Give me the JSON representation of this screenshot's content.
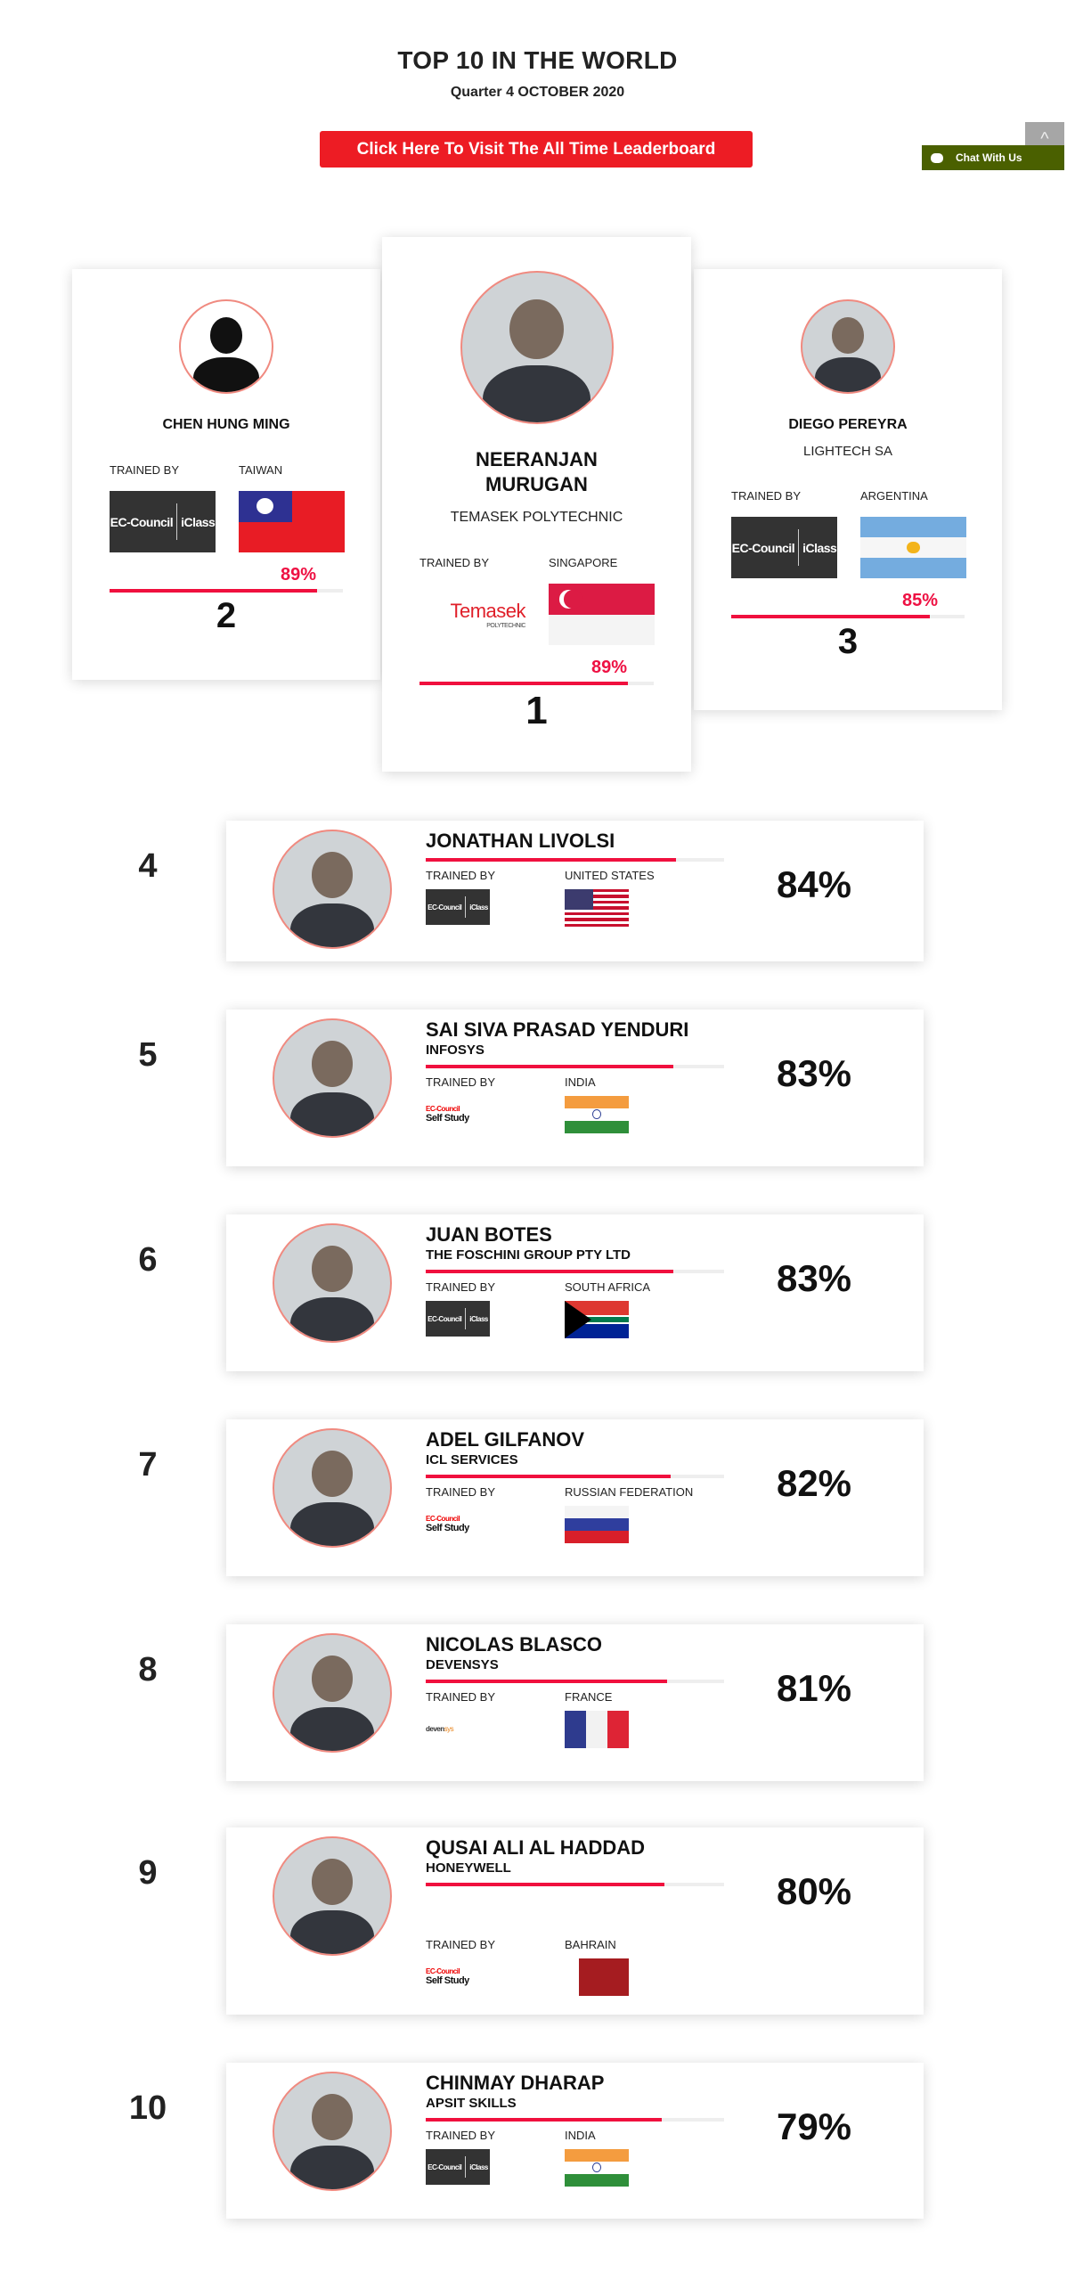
{
  "header": {
    "title": "TOP 10 IN THE WORLD",
    "subtitle": "Quarter 4 OCTOBER 2020",
    "cta_label": "Click Here To Visit The All Time Leaderboard"
  },
  "widgets": {
    "scroll_top_icon": "chevron-up-icon",
    "scroll_top_glyph": "^",
    "chat_label": "Chat With Us",
    "chat_icon": "speech-bubble-icon"
  },
  "trained_by_label": "TRAINED BY",
  "accent_color": "#f0103e",
  "podium": [
    {
      "rank": "2",
      "name": "CHEN HUNG MING",
      "org": "",
      "country": "TAIWAN",
      "flag": "TW",
      "trainer": "ec-council-iclass",
      "trainer_text": [
        "EC-Council",
        "iClass"
      ],
      "score": 89,
      "score_label": "89%",
      "avatar": "silhouette"
    },
    {
      "rank": "1",
      "name": "NEERANJAN MURUGAN",
      "org": "TEMASEK POLYTECHNIC",
      "country": "SINGAPORE",
      "flag": "SG",
      "trainer": "temasek",
      "trainer_text": [
        "Temasek",
        "POLYTECHNIC"
      ],
      "score": 89,
      "score_label": "89%",
      "avatar": "photo"
    },
    {
      "rank": "3",
      "name": "DIEGO PEREYRA",
      "org": "LIGHTECH SA",
      "country": "ARGENTINA",
      "flag": "AR",
      "trainer": "ec-council-iclass",
      "trainer_text": [
        "EC-Council",
        "iClass"
      ],
      "score": 85,
      "score_label": "85%",
      "avatar": "photo"
    }
  ],
  "rows": [
    {
      "rank": "4",
      "name": "JONATHAN LIVOLSI",
      "org": "",
      "country": "UNITED STATES",
      "flag": "US",
      "trainer": "ec-council-iclass",
      "trainer_text": [
        "EC-Council",
        "iClass"
      ],
      "score": 84,
      "score_label": "84%"
    },
    {
      "rank": "5",
      "name": "SAI SIVA PRASAD YENDURI",
      "org": "INFOSYS",
      "country": "INDIA",
      "flag": "IN",
      "trainer": "ec-council-self-study",
      "trainer_text": [
        "EC-Council",
        "Self Study"
      ],
      "score": 83,
      "score_label": "83%"
    },
    {
      "rank": "6",
      "name": "JUAN BOTES",
      "org": "THE FOSCHINI GROUP PTY LTD",
      "country": "SOUTH AFRICA",
      "flag": "ZA",
      "trainer": "ec-council-iclass",
      "trainer_text": [
        "EC-Council",
        "iClass"
      ],
      "score": 83,
      "score_label": "83%"
    },
    {
      "rank": "7",
      "name": "ADEL GILFANOV",
      "org": "ICL SERVICES",
      "country": "RUSSIAN FEDERATION",
      "flag": "RU",
      "trainer": "ec-council-self-study",
      "trainer_text": [
        "EC-Council",
        "Self Study"
      ],
      "score": 82,
      "score_label": "82%"
    },
    {
      "rank": "8",
      "name": "NICOLAS BLASCO",
      "org": "DEVENSYS",
      "country": "FRANCE",
      "flag": "FR",
      "trainer": "devensys",
      "trainer_text": [
        "deven",
        "sys"
      ],
      "score": 81,
      "score_label": "81%"
    },
    {
      "rank": "9",
      "name": "QUSAI ALI AL HADDAD",
      "org": "HONEYWELL",
      "country": "BAHRAIN",
      "flag": "BH",
      "trainer": "ec-council-self-study",
      "trainer_text": [
        "EC-Council",
        "Self Study"
      ],
      "score": 80,
      "score_label": "80%"
    },
    {
      "rank": "10",
      "name": "CHINMAY DHARAP",
      "org": "APSIT SKILLS",
      "country": "INDIA",
      "flag": "IN",
      "trainer": "ec-council-iclass",
      "trainer_text": [
        "EC-Council",
        "iClass"
      ],
      "score": 79,
      "score_label": "79%"
    }
  ]
}
